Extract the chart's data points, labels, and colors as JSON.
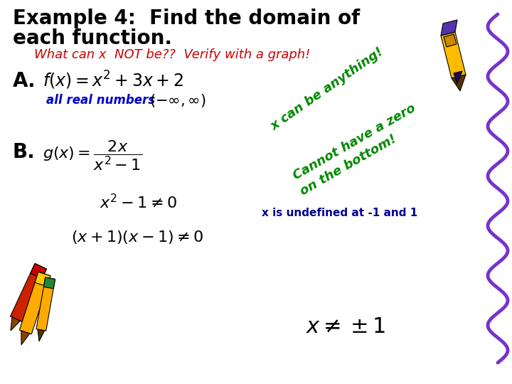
{
  "background_color": "#ffffff",
  "title_line1": "Example 4:  Find the domain of",
  "title_line2": "each function.",
  "title_color": "#000000",
  "title_fontsize": 20,
  "subtitle": "What can x  NOT be??  Verify with a graph!",
  "subtitle_color": "#cc0000",
  "subtitle_fontsize": 13,
  "label_A": "A.",
  "label_B": "B.",
  "label_color": "#000000",
  "label_fontsize": 20,
  "answer_A_text": "all real numbers",
  "answer_A_color": "#0000cc",
  "answer_A_fontsize": 12,
  "hint_A": "x can be anything!",
  "hint_A_color": "#008800",
  "hint_A_fontsize": 13,
  "hint_B_line1": "Cannot have a zero",
  "hint_B_line2": "on the bottom!",
  "hint_B_color": "#008800",
  "hint_B_fontsize": 13,
  "undefined_text": "x is undefined at -1 and 1",
  "undefined_color": "#00008B",
  "undefined_fontsize": 11,
  "wavy_line_color": "#7733cc"
}
